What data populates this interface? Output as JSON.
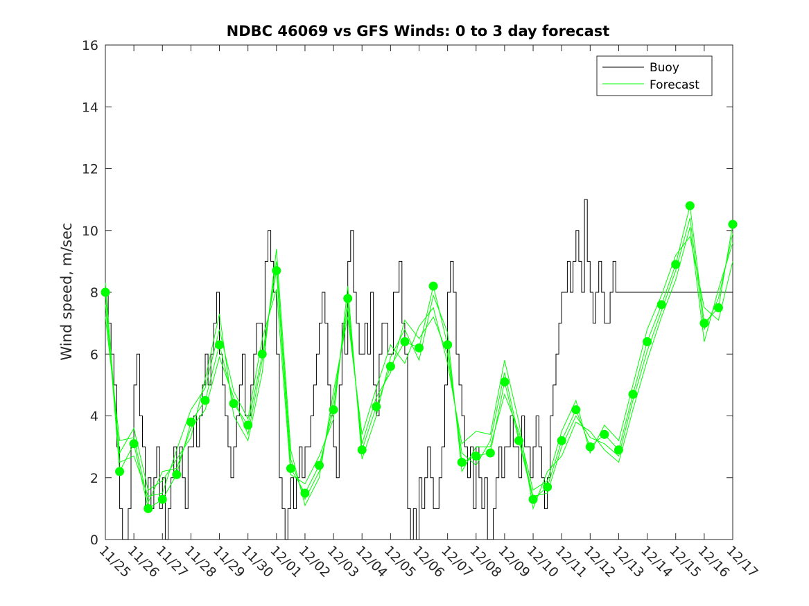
{
  "chart_data": {
    "type": "line",
    "title": "NDBC 46069 vs GFS Winds: 0 to 3 day forecast",
    "xlabel": "",
    "ylabel": "Wind speed, m/sec",
    "xlim": [
      0,
      22
    ],
    "ylim": [
      0,
      16
    ],
    "yticks": [
      0,
      2,
      4,
      6,
      8,
      10,
      12,
      14,
      16
    ],
    "xtick_labels": [
      "11/25",
      "11/26",
      "11/27",
      "11/28",
      "11/29",
      "11/30",
      "12/01",
      "12/02",
      "12/03",
      "12/04",
      "12/05",
      "12/06",
      "12/07",
      "12/08",
      "12/09",
      "12/10",
      "12/11",
      "12/12",
      "12/13",
      "12/14",
      "12/15",
      "12/16",
      "12/17"
    ],
    "grid": false,
    "legend": {
      "placement": "top-right",
      "entries": [
        "Buoy",
        "Forecast"
      ]
    },
    "colors": {
      "buoy": "#000000",
      "forecast": "#00ff00"
    },
    "series": [
      {
        "name": "Buoy",
        "x": [
          0,
          0.1,
          0.2,
          0.3,
          0.4,
          0.5,
          0.6,
          0.7,
          0.8,
          0.9,
          1.0,
          1.1,
          1.2,
          1.3,
          1.4,
          1.5,
          1.6,
          1.7,
          1.8,
          1.9,
          2.0,
          2.1,
          2.2,
          2.3,
          2.4,
          2.5,
          2.6,
          2.7,
          2.8,
          2.9,
          3.0,
          3.1,
          3.2,
          3.3,
          3.4,
          3.5,
          3.6,
          3.7,
          3.8,
          3.9,
          4.0,
          4.1,
          4.2,
          4.3,
          4.4,
          4.5,
          4.6,
          4.7,
          4.8,
          4.9,
          5.0,
          5.1,
          5.2,
          5.3,
          5.4,
          5.5,
          5.6,
          5.7,
          5.8,
          5.9,
          6.0,
          6.1,
          6.2,
          6.3,
          6.4,
          6.5,
          6.6,
          6.7,
          6.8,
          6.9,
          7.0,
          7.1,
          7.2,
          7.3,
          7.4,
          7.5,
          7.6,
          7.7,
          7.8,
          7.9,
          8.0,
          8.1,
          8.2,
          8.3,
          8.4,
          8.5,
          8.6,
          8.7,
          8.8,
          8.9,
          9.0,
          9.1,
          9.2,
          9.3,
          9.4,
          9.5,
          9.6,
          9.7,
          9.8,
          9.9,
          10.0,
          10.1,
          10.2,
          10.3,
          10.4,
          10.5,
          10.6,
          10.7,
          10.8,
          10.9,
          11.0,
          11.1,
          11.2,
          11.3,
          11.4,
          11.5,
          11.6,
          11.7,
          11.8,
          11.9,
          12.0,
          12.1,
          12.2,
          12.3,
          12.4,
          12.5,
          12.6,
          12.7,
          12.8,
          12.9,
          13.0,
          13.1,
          13.2,
          13.3,
          13.4,
          13.5,
          13.6,
          13.7,
          13.8,
          13.9,
          14.0,
          14.1,
          14.2,
          14.3,
          14.4,
          14.5,
          14.6,
          14.7,
          14.8,
          14.9,
          15.0,
          15.1,
          15.2,
          15.3,
          15.4,
          15.5,
          15.6,
          15.7,
          15.8,
          15.9,
          16.0,
          16.1,
          16.2,
          16.3,
          16.4,
          16.5,
          16.6,
          16.7,
          16.8,
          16.9,
          17.0,
          17.1,
          17.2,
          17.3,
          17.4,
          17.5,
          17.6,
          17.7,
          17.8,
          17.9,
          18.0,
          18.1,
          18.2,
          18.3,
          18.4,
          18.5,
          18.6,
          18.7,
          18.8,
          18.9,
          19.0,
          19.1,
          19.2,
          19.3,
          19.4,
          19.5,
          19.6,
          19.7,
          19.8,
          19.9,
          20.0,
          20.1,
          20.2,
          20.3,
          20.4,
          20.5,
          20.6,
          20.7,
          20.8,
          20.9,
          21.0,
          21.1,
          21.2,
          21.3,
          21.4,
          21.5,
          21.6,
          21.7,
          21.8,
          21.9,
          22.0
        ],
        "values": [
          8,
          7,
          6,
          5,
          3,
          1,
          0,
          0,
          1,
          3,
          5,
          6,
          4,
          3,
          1,
          2,
          1,
          2,
          3,
          1,
          2,
          0,
          1,
          2,
          3,
          2,
          3,
          2,
          1,
          3,
          3,
          4,
          3,
          4,
          5,
          6,
          5,
          6,
          7,
          8,
          6,
          5,
          4,
          3,
          2,
          3,
          4,
          5,
          6,
          4,
          4,
          5,
          6,
          7,
          7,
          6,
          9,
          10,
          9,
          8,
          6,
          2,
          1,
          0,
          1,
          2,
          1,
          2,
          3,
          2,
          3,
          3,
          4,
          5,
          6,
          7,
          8,
          7,
          5,
          4,
          3,
          2,
          5,
          7,
          6,
          9,
          10,
          8,
          7,
          6,
          6,
          7,
          6,
          8,
          5,
          4,
          6,
          7,
          7,
          6,
          6,
          8,
          8,
          9,
          7,
          6,
          1,
          0,
          1,
          0,
          2,
          1,
          2,
          3,
          2,
          1,
          1,
          2,
          3,
          5,
          8,
          9,
          8,
          6,
          5,
          4,
          3,
          2,
          3,
          1,
          3,
          2,
          1,
          2,
          0,
          0,
          1,
          2,
          3,
          2,
          3,
          3,
          4,
          3,
          3,
          2,
          4,
          3,
          3,
          2,
          3,
          4,
          3,
          2,
          1,
          2,
          4,
          5,
          6,
          7,
          8,
          8,
          9,
          8,
          9,
          10,
          9,
          8,
          11,
          9,
          8,
          7,
          8,
          9,
          8,
          7,
          7,
          8,
          9,
          8,
          8,
          8,
          8,
          8,
          8,
          8,
          8,
          8,
          8,
          8,
          8,
          8,
          8,
          8,
          8,
          8,
          8,
          8,
          8,
          8,
          8,
          8,
          8,
          8,
          8,
          8,
          8,
          8,
          8,
          8,
          8,
          8,
          8,
          8,
          8,
          8,
          8,
          8,
          8,
          8,
          8
        ]
      },
      {
        "name": "Forecast",
        "x": [
          0.0,
          0.5,
          1.0,
          1.5,
          2.0,
          2.5,
          3.0,
          3.5,
          4.0,
          4.5,
          5.0,
          5.5,
          6.0,
          6.5,
          7.0,
          7.5,
          8.0,
          8.5,
          9.0,
          9.5,
          10.0,
          10.5,
          11.0,
          11.5,
          12.0,
          12.5,
          13.0,
          13.5,
          14.0,
          14.5,
          15.0,
          15.5,
          16.0,
          16.5,
          17.0,
          17.5,
          18.0,
          18.5,
          19.0,
          19.5,
          20.0,
          20.5,
          21.0,
          21.5,
          22.0
        ],
        "values": [
          8.0,
          2.2,
          3.1,
          1.0,
          1.3,
          2.1,
          3.8,
          4.5,
          6.3,
          4.4,
          3.7,
          6.0,
          8.7,
          2.3,
          1.5,
          2.4,
          4.2,
          7.8,
          2.9,
          4.3,
          5.6,
          6.4,
          6.2,
          8.2,
          6.3,
          2.5,
          2.7,
          2.8,
          5.1,
          3.2,
          1.3,
          1.7,
          3.2,
          4.2,
          3.0,
          3.4,
          2.9,
          4.7,
          6.4,
          7.6,
          8.9,
          10.8,
          7.0,
          7.5,
          10.2
        ]
      },
      {
        "name": "Forecast",
        "x": [
          0.0,
          0.5,
          1.0,
          1.5,
          2.0,
          2.5,
          3.0,
          3.5,
          4.0,
          4.5,
          5.0,
          5.5,
          6.0,
          6.5,
          7.0,
          7.5,
          8.0,
          8.5,
          9.0,
          9.5,
          10.0,
          10.5,
          11.0,
          11.5,
          12.0,
          12.5,
          13.0,
          13.5,
          14.0,
          14.5,
          15.0,
          15.5,
          16.0,
          16.5,
          17.0,
          17.5,
          18.0,
          18.5,
          19.0,
          19.5,
          20.0,
          20.5,
          21.0,
          21.5,
          22.0
        ],
        "values": [
          7.6,
          2.8,
          3.6,
          1.6,
          1.9,
          2.6,
          3.3,
          5.2,
          7.3,
          4.0,
          3.2,
          5.4,
          9.4,
          2.9,
          1.1,
          2.0,
          4.8,
          7.2,
          3.4,
          4.9,
          6.3,
          5.7,
          6.9,
          7.5,
          5.7,
          3.1,
          3.5,
          3.4,
          5.8,
          3.8,
          1.0,
          2.2,
          2.7,
          3.8,
          3.5,
          2.9,
          2.5,
          4.2,
          5.8,
          7.2,
          8.4,
          10.1,
          6.4,
          8.1,
          9.6
        ]
      },
      {
        "name": "Forecast",
        "x": [
          0.0,
          0.5,
          1.0,
          1.5,
          2.0,
          2.5,
          3.0,
          3.5,
          4.0,
          4.5,
          5.0,
          5.5,
          6.0,
          6.5,
          7.0,
          7.5,
          8.0,
          8.5,
          9.0,
          9.5,
          10.0,
          10.5,
          11.0,
          11.5,
          12.0,
          12.5,
          13.0,
          13.5,
          14.0,
          14.5,
          15.0,
          15.5,
          16.0,
          16.5,
          17.0,
          17.5,
          18.0,
          18.5,
          19.0,
          19.5,
          20.0,
          20.5,
          21.0,
          21.5,
          22.0
        ],
        "values": [
          8.3,
          2.5,
          2.7,
          1.4,
          1.5,
          2.9,
          4.2,
          4.9,
          6.8,
          4.8,
          3.9,
          6.5,
          8.1,
          2.1,
          1.8,
          2.7,
          3.9,
          8.2,
          2.6,
          4.0,
          5.9,
          6.8,
          5.8,
          7.9,
          6.7,
          2.2,
          3.0,
          3.0,
          4.7,
          3.5,
          1.6,
          1.9,
          3.5,
          4.5,
          2.8,
          3.7,
          3.2,
          5.0,
          6.8,
          7.9,
          9.2,
          9.8,
          7.5,
          7.1,
          9.0
        ]
      },
      {
        "name": "Forecast",
        "x": [
          0.0,
          0.5,
          1.0,
          1.5,
          2.0,
          2.5,
          3.0,
          3.5,
          4.0,
          4.5,
          5.0,
          5.5,
          6.0,
          6.5,
          7.0,
          7.5,
          8.0,
          8.5,
          9.0,
          9.5,
          10.0,
          10.5,
          11.0,
          11.5,
          12.0,
          12.5,
          13.0,
          13.5,
          14.0,
          14.5,
          15.0,
          15.5,
          16.0,
          16.5,
          17.0,
          17.5,
          18.0,
          18.5,
          19.0,
          19.5,
          20.0,
          20.5,
          21.0,
          21.5,
          22.0
        ],
        "values": [
          7.2,
          3.2,
          3.3,
          1.2,
          2.2,
          2.3,
          3.6,
          4.2,
          5.9,
          4.6,
          3.4,
          5.8,
          9.0,
          2.6,
          1.3,
          2.2,
          4.5,
          7.5,
          3.1,
          4.6,
          5.4,
          7.1,
          6.5,
          7.2,
          6.0,
          2.8,
          2.4,
          3.2,
          5.4,
          3.3,
          1.4,
          1.5,
          3.0,
          4.0,
          3.3,
          3.1,
          2.7,
          4.5,
          6.1,
          7.4,
          8.7,
          10.4,
          6.8,
          7.8,
          9.9
        ]
      }
    ]
  }
}
